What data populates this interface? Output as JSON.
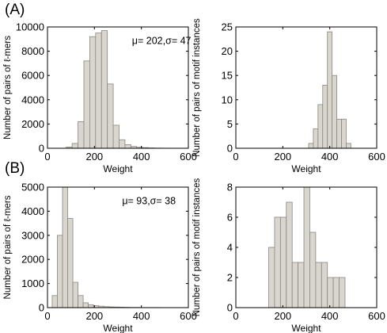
{
  "panel_labels": [
    "(A)",
    "(B)"
  ],
  "chart_data": [
    {
      "type": "bar",
      "panel": "A-left",
      "xlabel": "Weight",
      "ylabel": "Number of pairs of ℓ-mers",
      "annotation": "μ= 202,σ= 47",
      "xlim": [
        0,
        600
      ],
      "ylim": [
        0,
        10000
      ],
      "xticks": [
        0,
        200,
        400,
        600
      ],
      "yticks": [
        0,
        2000,
        4000,
        6000,
        8000,
        10000
      ],
      "bin_edges": [
        80,
        105,
        130,
        155,
        180,
        205,
        230,
        255,
        280,
        305,
        330,
        355,
        380,
        405,
        430,
        455,
        480,
        505
      ],
      "values": [
        100,
        400,
        2200,
        7200,
        9200,
        9500,
        9700,
        5300,
        1900,
        700,
        300,
        150,
        80,
        50,
        30,
        15,
        10
      ]
    },
    {
      "type": "bar",
      "panel": "A-right",
      "xlabel": "Weight",
      "ylabel": "Number of pairs of motif instances",
      "xlim": [
        0,
        600
      ],
      "ylim": [
        0,
        25
      ],
      "xticks": [
        0,
        200,
        400,
        600
      ],
      "yticks": [
        0,
        5,
        10,
        15,
        20,
        25
      ],
      "bin_edges": [
        310,
        330,
        350,
        370,
        390,
        410,
        430,
        450,
        470,
        490
      ],
      "values": [
        1,
        4,
        9,
        13,
        24,
        15,
        6,
        6,
        1
      ]
    },
    {
      "type": "bar",
      "panel": "B-left",
      "xlabel": "Weight",
      "ylabel": "Number of pairs of ℓ-mers",
      "annotation": "μ= 93,σ= 38",
      "xlim": [
        0,
        600
      ],
      "ylim": [
        0,
        5000
      ],
      "xticks": [
        0,
        200,
        400,
        600
      ],
      "yticks": [
        0,
        1000,
        2000,
        3000,
        4000,
        5000
      ],
      "bin_edges": [
        20,
        42,
        64,
        86,
        108,
        130,
        152,
        174,
        196,
        218,
        240,
        262,
        284,
        306,
        328,
        350,
        372,
        394,
        416,
        438,
        460,
        482
      ],
      "values": [
        500,
        3000,
        5000,
        3700,
        1050,
        500,
        200,
        120,
        80,
        60,
        40,
        30,
        25,
        20,
        15,
        10,
        10,
        5,
        5,
        5,
        5
      ]
    },
    {
      "type": "bar",
      "panel": "B-right",
      "xlabel": "Weight",
      "ylabel": "Number of pairs of motif instances",
      "xlim": [
        0,
        600
      ],
      "ylim": [
        0,
        8
      ],
      "xticks": [
        0,
        200,
        400,
        600
      ],
      "yticks": [
        0,
        2,
        4,
        6,
        8
      ],
      "bin_edges": [
        140,
        165,
        190,
        215,
        240,
        265,
        290,
        315,
        340,
        365,
        390,
        415,
        440,
        465
      ],
      "values": [
        4,
        6,
        6,
        7,
        3,
        3,
        8,
        5,
        3,
        3,
        2,
        2,
        2
      ]
    }
  ]
}
